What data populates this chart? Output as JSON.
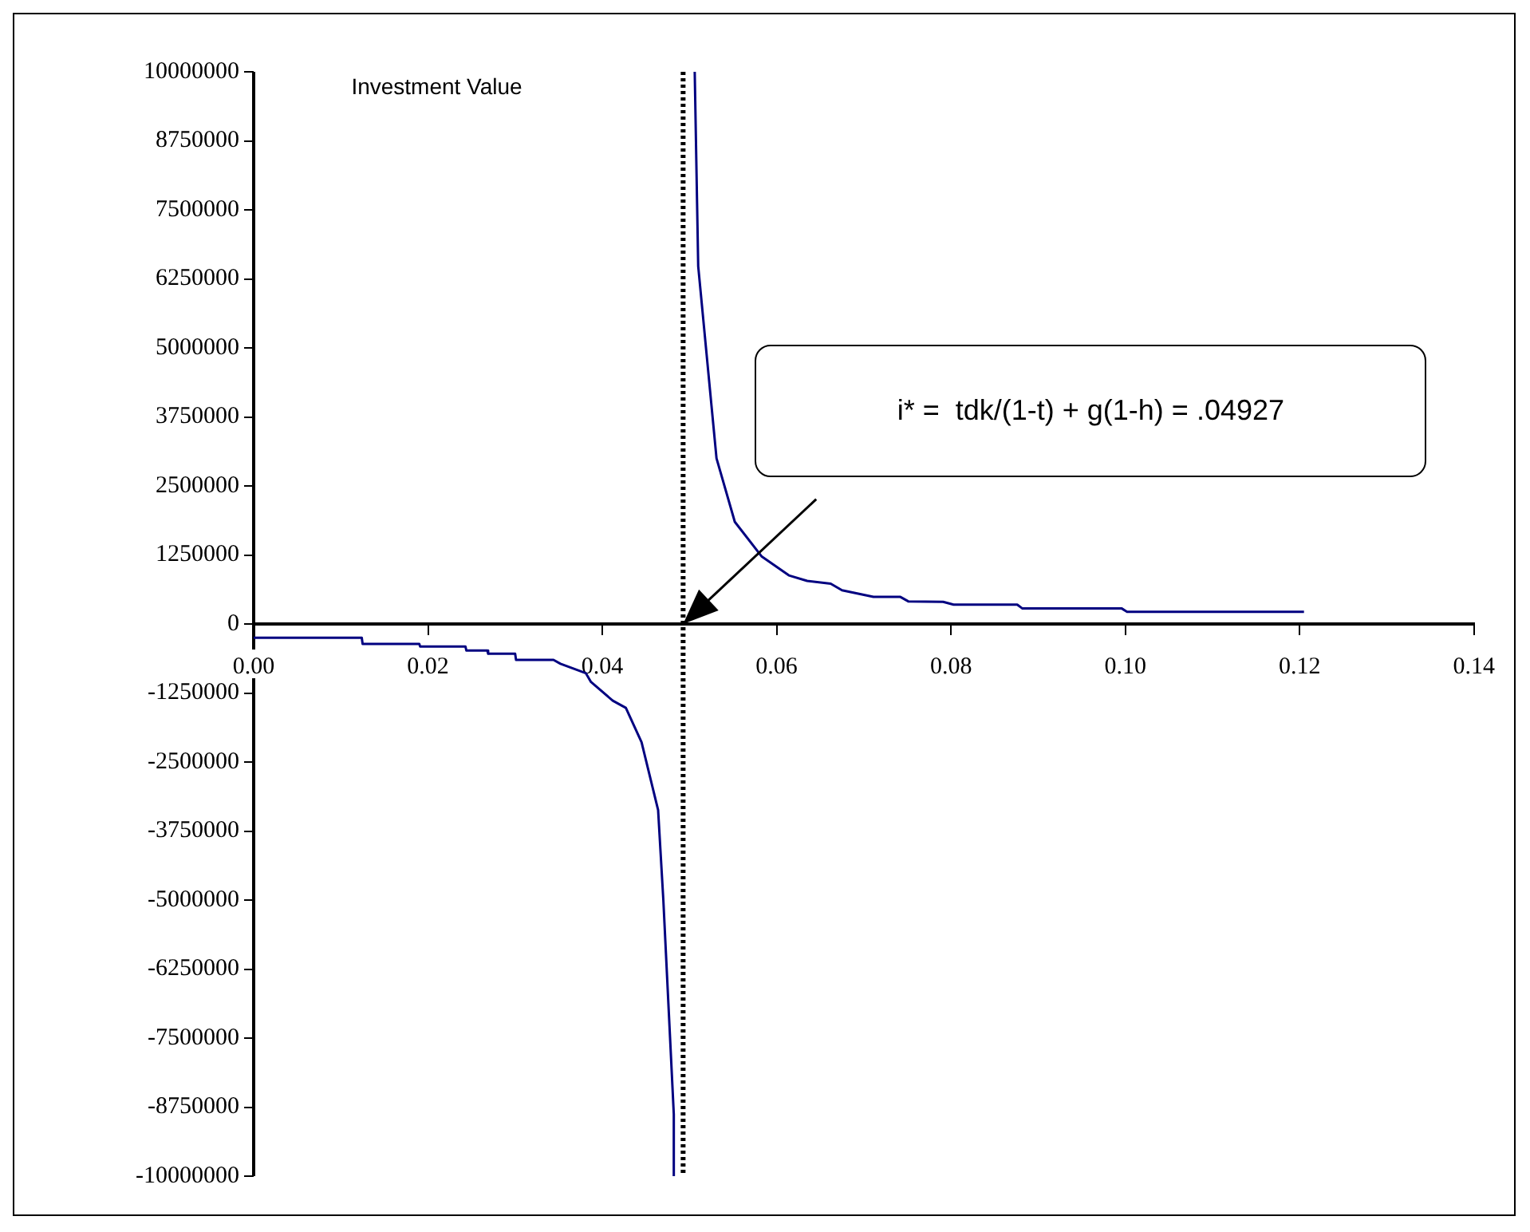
{
  "chart_data": {
    "type": "line",
    "title": "Investment Value",
    "color": "#000080",
    "x": [
      0,
      0.0124,
      0.0125,
      0.019,
      0.0191,
      0.0243,
      0.0244,
      0.0268,
      0.0269,
      0.03,
      0.0301,
      0.0344,
      0.0352,
      0.0381,
      0.0387,
      0.0412,
      0.0427,
      0.0445,
      0.0464,
      0.047,
      0.0482,
      0.0482,
      0.04927,
      0.0506,
      0.051,
      0.0531,
      0.0552,
      0.0583,
      0.0614,
      0.0635,
      0.0662,
      0.0675,
      0.0711,
      0.0742,
      0.0751,
      0.0791,
      0.0803,
      0.0876,
      0.0882,
      0.0996,
      0.1002,
      0.1205
    ],
    "values": [
      -250000,
      -250000,
      -360000,
      -360000,
      -410000,
      -410000,
      -480000,
      -480000,
      -540000,
      -540000,
      -650000,
      -650000,
      -720000,
      -890000,
      -1050000,
      -1390000,
      -1520000,
      -2140000,
      -3370000,
      -5000000,
      -8880000,
      -10000000,
      null,
      10000000,
      6480000,
      3000000,
      1850000,
      1220000,
      880000,
      780000,
      730000,
      610000,
      490000,
      490000,
      410000,
      400000,
      350000,
      350000,
      280000,
      280000,
      220000,
      220000
    ],
    "xlim": [
      0,
      0.14
    ],
    "xticks": [
      {
        "value": 0,
        "label": "0.00"
      },
      {
        "value": 0.02,
        "label": "0.02"
      },
      {
        "value": 0.04,
        "label": "0.04"
      },
      {
        "value": 0.06,
        "label": "0.06"
      },
      {
        "value": 0.08,
        "label": "0.08"
      },
      {
        "value": 0.1,
        "label": "0.10"
      },
      {
        "value": 0.12,
        "label": "0.12"
      },
      {
        "value": 0.14,
        "label": "0.14"
      }
    ],
    "ylim": [
      -10000000,
      10000000
    ],
    "yticks": [
      -10000000,
      -8750000,
      -7500000,
      -6250000,
      -5000000,
      -3750000,
      -2500000,
      -1250000,
      0,
      1250000,
      2500000,
      3750000,
      5000000,
      6250000,
      7500000,
      8750000,
      10000000
    ],
    "ref_lines": [
      {
        "axis": "x",
        "value": 0.04927,
        "color": "#000000",
        "line_style": "dotted"
      }
    ],
    "annotations": [
      "i* =  tdk/(1-t) + g(1-h) = .04927"
    ],
    "grid": false,
    "legend": false
  }
}
